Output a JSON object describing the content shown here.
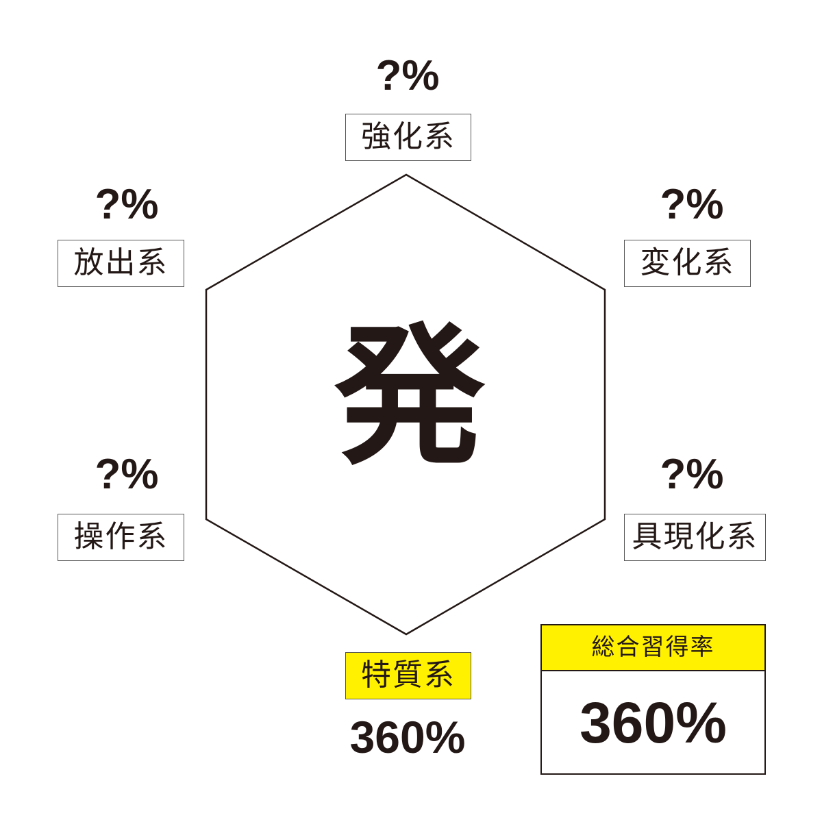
{
  "center_char": "発",
  "categories": [
    {
      "name": "強化系",
      "value": "?%"
    },
    {
      "name": "変化系",
      "value": "?%"
    },
    {
      "name": "具現化系",
      "value": "?%"
    },
    {
      "name": "特質系",
      "value": "360%",
      "highlighted": true
    },
    {
      "name": "操作系",
      "value": "?%"
    },
    {
      "name": "放出系",
      "value": "?%"
    }
  ],
  "total": {
    "label": "総合習得率",
    "value": "360%"
  },
  "colors": {
    "highlight": "#fff100",
    "text": "#231815"
  }
}
